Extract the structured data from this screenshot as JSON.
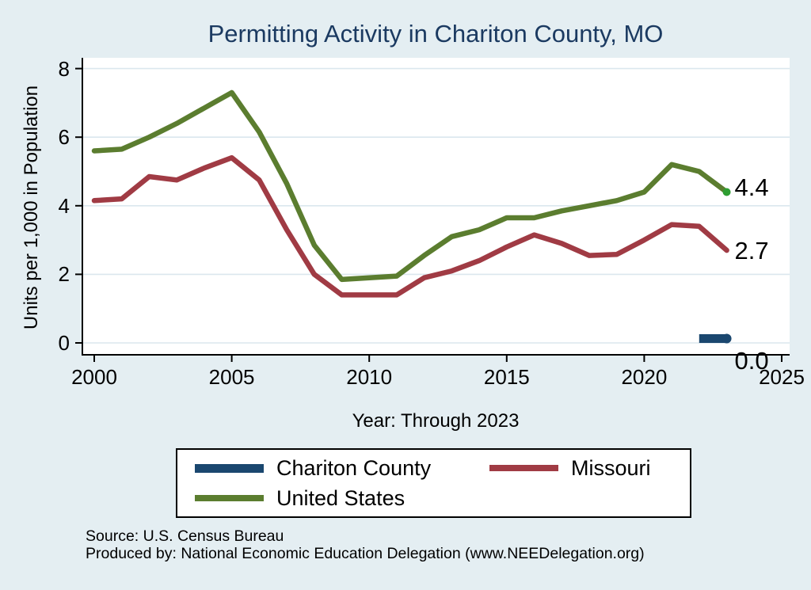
{
  "page": {
    "title": "Permitting Activity in Chariton County, MO"
  },
  "colors": {
    "background": "#e4eef2",
    "plot_background": "#ffffff",
    "gridline": "#dbe7ee",
    "axis": "#000000",
    "title_text": "#1b3a61"
  },
  "chart_data": {
    "type": "line",
    "title": "Permitting Activity in Chariton County, MO",
    "xlabel": "Year: Through 2023",
    "ylabel": "Units per 1,000 in Population",
    "xlim": [
      2000,
      2025
    ],
    "ylim": [
      0,
      8
    ],
    "x_ticks": [
      2000,
      2005,
      2010,
      2015,
      2020,
      2025
    ],
    "y_ticks": [
      0,
      2,
      4,
      6,
      8
    ],
    "grid": "horizontal",
    "legend_position": "bottom-center",
    "series": [
      {
        "name": "Chariton County",
        "color": "#1a476f",
        "line_width": 11,
        "x": [
          2022,
          2023
        ],
        "values": [
          0.0,
          0.0
        ],
        "end_label": "0.0",
        "end_label_dy": 30,
        "end_dot": true,
        "end_dot_color": "#1a476f"
      },
      {
        "name": "Missouri",
        "color": "#a03b44",
        "line_width": 6.5,
        "x": [
          2000,
          2001,
          2002,
          2003,
          2004,
          2005,
          2006,
          2007,
          2008,
          2009,
          2010,
          2011,
          2012,
          2013,
          2014,
          2015,
          2016,
          2017,
          2018,
          2019,
          2020,
          2021,
          2022,
          2023
        ],
        "values": [
          4.15,
          4.2,
          4.85,
          4.75,
          5.1,
          5.4,
          4.75,
          3.3,
          2.0,
          1.4,
          1.4,
          1.4,
          1.9,
          2.1,
          2.4,
          2.8,
          3.15,
          2.9,
          2.55,
          2.58,
          3.0,
          3.45,
          3.4,
          2.7
        ],
        "end_label": "2.7",
        "end_label_dy": 3,
        "end_dot": false
      },
      {
        "name": "United States",
        "color": "#5b7d2f",
        "line_width": 6.5,
        "x": [
          2000,
          2001,
          2002,
          2003,
          2004,
          2005,
          2006,
          2007,
          2008,
          2009,
          2010,
          2011,
          2012,
          2013,
          2014,
          2015,
          2016,
          2017,
          2018,
          2019,
          2020,
          2021,
          2022,
          2023
        ],
        "values": [
          5.6,
          5.65,
          6.0,
          6.4,
          6.85,
          7.3,
          6.15,
          4.65,
          2.85,
          1.85,
          1.9,
          1.95,
          2.55,
          3.1,
          3.3,
          3.65,
          3.65,
          3.85,
          4.0,
          4.15,
          4.4,
          5.2,
          5.0,
          4.4
        ],
        "end_label": "4.4",
        "end_label_dy": -3,
        "end_dot": true,
        "end_dot_color": "#2e9e32"
      }
    ]
  },
  "legend": {
    "items": [
      "Chariton County",
      "Missouri",
      "United States"
    ]
  },
  "footer": {
    "source": "Source: U.S. Census Bureau",
    "produced_by": "Produced by: National Economic Education Delegation (www.NEEDelegation.org)"
  }
}
